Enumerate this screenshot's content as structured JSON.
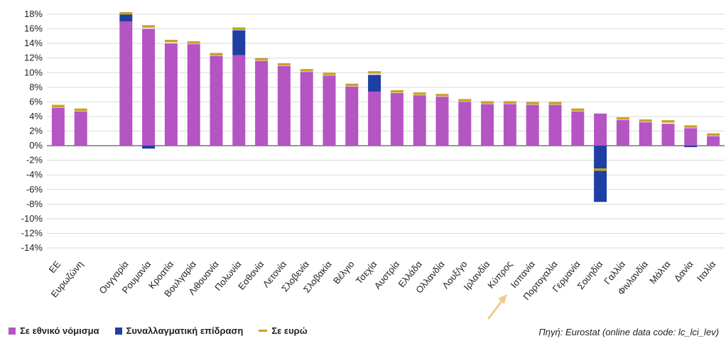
{
  "chart_data": {
    "type": "bar",
    "stacked": true,
    "ylim": [
      -14,
      18
    ],
    "yticks": [
      "18%",
      "16%",
      "14%",
      "12%",
      "10%",
      "8%",
      "6%",
      "4%",
      "2%",
      "0%",
      "-2%",
      "-4%",
      "-6%",
      "-8%",
      "-10%",
      "-12%",
      "-14%"
    ],
    "grid": true,
    "legend_position": "bottom-left",
    "categories": [
      "ΕΕ",
      "Ευρωζώνη",
      "",
      "Ουγγαρία",
      "Ρουμανία",
      "Κροατία",
      "Βουλγαρία",
      "Λιθουανία",
      "Πολωνία",
      "Εσθονία",
      "Λετονία",
      "Σλοβενία",
      "Σλοβακία",
      "Βέλγιο",
      "Τσεχία",
      "Αυστρία",
      "Ελλάδα",
      "Ολλανδία",
      "Λουξ/γο",
      "Ιρλανδία",
      "Κύπρος",
      "Ισπανία",
      "Πορτογαλία",
      "Γερμανία",
      "Σουηδία",
      "Γαλλία",
      "Φινλανδία",
      "Μάλτα",
      "Δανία",
      "Ιταλία"
    ],
    "series": [
      {
        "name": "Σε εθνικό νόμισμα",
        "color": "#b455c3",
        "values": [
          5.2,
          4.7,
          null,
          17.0,
          16.0,
          14.0,
          13.9,
          12.3,
          12.4,
          11.6,
          10.9,
          10.1,
          9.6,
          8.1,
          7.4,
          7.2,
          6.9,
          6.7,
          6.0,
          5.7,
          5.7,
          5.6,
          5.6,
          4.7,
          4.4,
          3.5,
          3.2,
          3.0,
          2.4,
          1.3
        ]
      },
      {
        "name": "Συναλλαγματική επίδραση",
        "color": "#1f3fa5",
        "values": [
          0,
          0,
          null,
          1.1,
          -0.4,
          0,
          0,
          0,
          3.4,
          0,
          0,
          0,
          0,
          0,
          2.3,
          0,
          0,
          0,
          0,
          0,
          0,
          0,
          0,
          0,
          -7.7,
          0,
          0,
          0,
          -0.2,
          0
        ]
      },
      {
        "name": "Σε ευρώ",
        "type": "marker",
        "color": "#c9a227",
        "values": [
          5.4,
          4.9,
          null,
          18.1,
          16.3,
          14.3,
          14.1,
          12.5,
          16.0,
          11.8,
          11.1,
          10.3,
          9.8,
          8.3,
          10.0,
          7.4,
          7.1,
          6.9,
          6.2,
          5.9,
          5.9,
          5.8,
          5.8,
          4.9,
          -3.3,
          3.7,
          3.4,
          3.3,
          2.6,
          1.5
        ]
      }
    ],
    "source": "Πηγή: Eurostat (online data code: lc_lci_lev)"
  }
}
